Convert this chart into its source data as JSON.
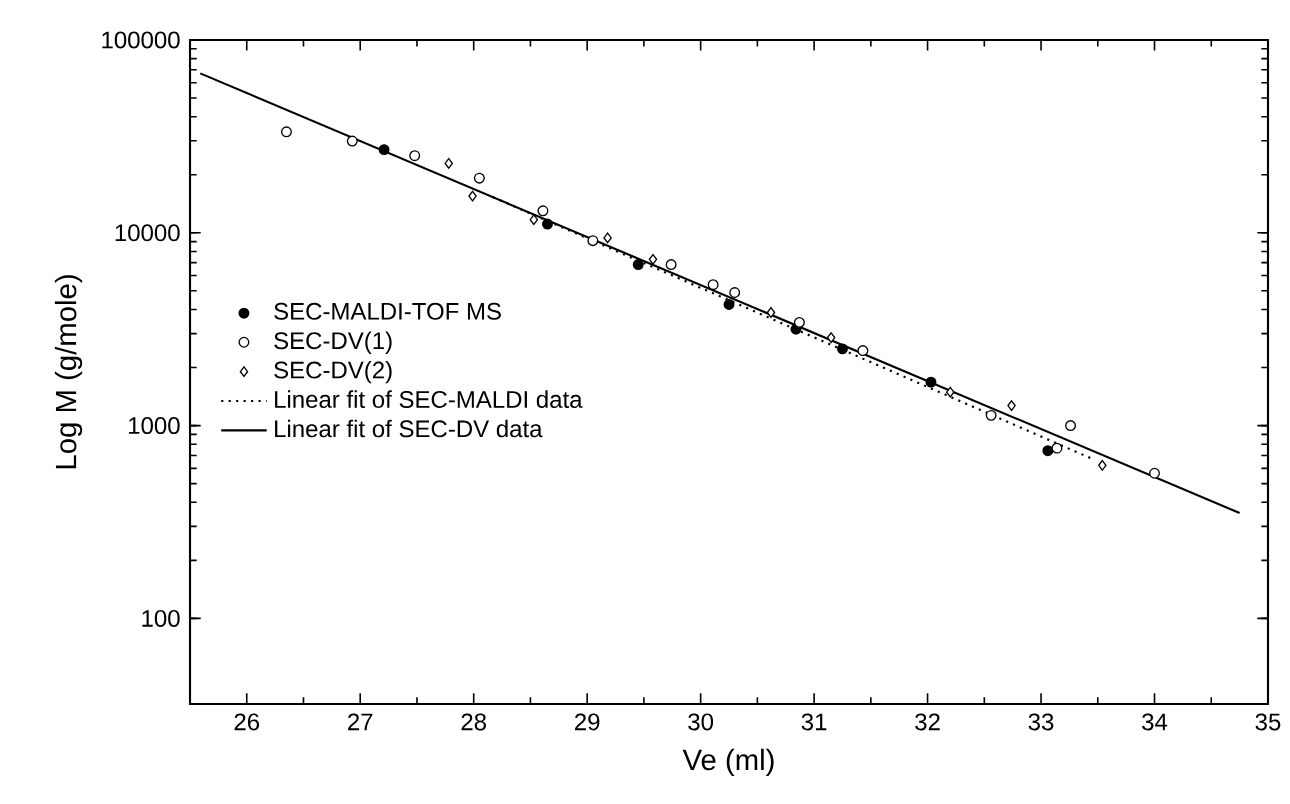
{
  "chart_data": {
    "type": "scatter",
    "xlabel": "Ve (ml)",
    "ylabel": "Log M (g/mole)",
    "log": "y",
    "xlim": [
      25.5,
      35
    ],
    "ylim": [
      36,
      100000
    ],
    "xticks": [
      26,
      27,
      28,
      29,
      30,
      31,
      32,
      33,
      34,
      35
    ],
    "yticks": [
      100,
      1000,
      10000,
      100000
    ],
    "grid": false,
    "legend": "left",
    "series": [
      {
        "name": "SEC-MALDI-TOF MS",
        "marker": "circle",
        "color": "#000000",
        "x": [
          27.21,
          28.65,
          29.45,
          30.25,
          30.84,
          31.25,
          32.03,
          33.06
        ],
        "values": [
          27000,
          11100,
          6840,
          4250,
          3160,
          2500,
          1680,
          741
        ]
      },
      {
        "name": "SEC-DV(1)",
        "marker": "circle",
        "color": "#ffffff",
        "x": [
          26.35,
          26.93,
          27.48,
          28.05,
          28.61,
          29.05,
          29.74,
          30.11,
          30.3,
          30.87,
          31.43,
          32.56,
          33.14,
          33.26,
          34.0
        ],
        "values": [
          33400,
          29900,
          25100,
          19200,
          13000,
          9100,
          6840,
          5380,
          4900,
          3430,
          2450,
          1130,
          764,
          1000,
          566
        ]
      },
      {
        "name": "SEC-DV(2)",
        "marker": "diamond",
        "color": "#ffffff",
        "x": [
          27.78,
          27.99,
          28.53,
          29.18,
          29.58,
          30.62,
          31.15,
          32.2,
          32.74,
          33.54
        ],
        "values": [
          22900,
          15500,
          11700,
          9400,
          7280,
          3860,
          2860,
          1490,
          1270,
          622
        ]
      },
      {
        "name": "Linear fit of SEC-MALDI data",
        "type": "line",
        "line_style": "dotted",
        "marker": "none",
        "color": "#000000",
        "x": [
          28.17,
          33.45
        ],
        "values": [
          15300,
          673
        ]
      },
      {
        "name": "Linear fit of SEC-DV data",
        "type": "line",
        "line_style": "solid",
        "marker": "none",
        "color": "#000000",
        "x": [
          25.59,
          34.75
        ],
        "values": [
          67100,
          352
        ]
      }
    ]
  }
}
